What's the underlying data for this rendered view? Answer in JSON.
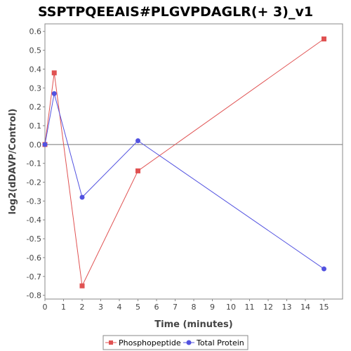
{
  "chart_data": {
    "type": "line",
    "title": "SSPTPQEEAIS#PLGVPDAGLR(+ 3)_v1",
    "xlabel": "Time (minutes)",
    "ylabel": "log2(dDAVP/Control)",
    "xlim": [
      0,
      16
    ],
    "ylim": [
      -0.82,
      0.64
    ],
    "x_ticks": [
      0,
      1,
      2,
      3,
      4,
      5,
      6,
      7,
      8,
      9,
      10,
      11,
      12,
      13,
      14,
      15
    ],
    "y_ticks": [
      -0.8,
      -0.7,
      -0.6,
      -0.5,
      -0.4,
      -0.3,
      -0.2,
      -0.1,
      0.0,
      0.1,
      0.2,
      0.3,
      0.4,
      0.5,
      0.6
    ],
    "y_tick_labels": [
      "-0.8",
      "-0.7",
      "-0.6",
      "-0.5",
      "-0.4",
      "-0.3",
      "-0.2",
      "-0.1",
      "0.0",
      "0.1",
      "0.2",
      "0.3",
      "0.4",
      "0.5",
      "0.6"
    ],
    "grid": false,
    "zero_line": true,
    "legend_position": "bottom",
    "series": [
      {
        "name": "Phosphopeptide",
        "color": "#e05252",
        "marker": "square",
        "x": [
          0,
          0.5,
          2,
          5,
          15
        ],
        "y": [
          0.0,
          0.38,
          -0.75,
          -0.14,
          0.56
        ]
      },
      {
        "name": "Total Protein",
        "color": "#5252e0",
        "marker": "circle",
        "x": [
          0,
          0.5,
          2,
          5,
          15
        ],
        "y": [
          0.0,
          0.27,
          -0.28,
          0.02,
          -0.66
        ]
      }
    ]
  }
}
